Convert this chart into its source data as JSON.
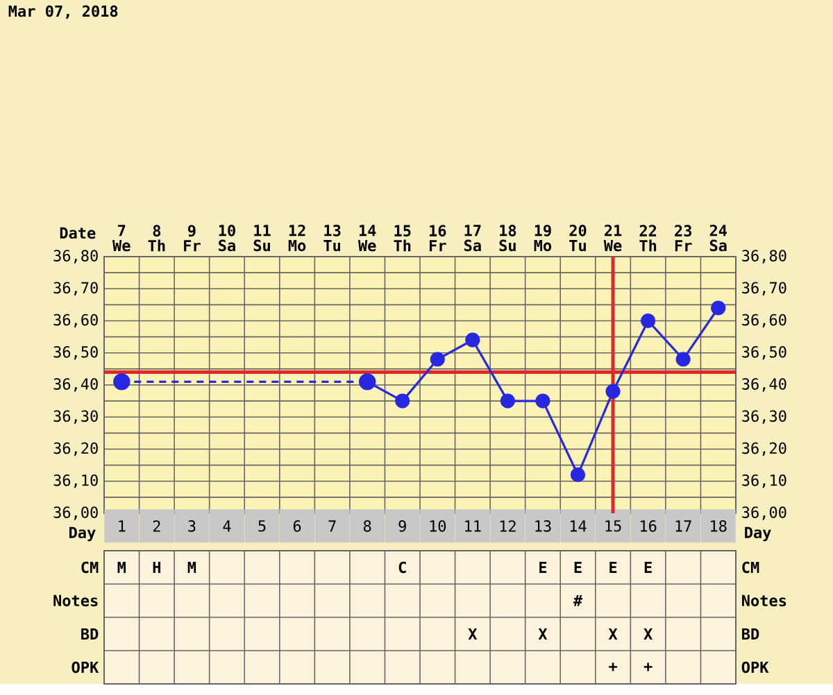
{
  "chart_data": [
    {
      "type": "line",
      "title": "Mar 07, 2018",
      "xlabel": "Day",
      "x2label": "Date",
      "categories": [
        "1",
        "2",
        "3",
        "4",
        "5",
        "6",
        "7",
        "8",
        "9",
        "10",
        "11",
        "12",
        "13",
        "14",
        "15",
        "16",
        "17",
        "18"
      ],
      "series": [
        {
          "color": "#2828e0",
          "line_style": "solid",
          "values": [
            null,
            null,
            null,
            null,
            null,
            null,
            null,
            36.41,
            36.35,
            36.48,
            36.54,
            36.35,
            36.35,
            36.12,
            36.38,
            36.6,
            36.48,
            36.64
          ]
        },
        {
          "color": "#2828e0",
          "line_style": "dashed",
          "values": [
            36.41,
            null,
            null,
            null,
            null,
            null,
            null,
            36.41,
            null,
            null,
            null,
            null,
            null,
            null,
            null,
            null,
            null,
            null
          ]
        }
      ],
      "marker": "circle",
      "grid": true,
      "ylim": [
        36.0,
        36.8
      ],
      "yticks": [
        {
          "value": 36.0,
          "label": "36,00"
        },
        {
          "value": 36.1,
          "label": "36,10"
        },
        {
          "value": 36.2,
          "label": "36,20"
        },
        {
          "value": 36.3,
          "label": "36,30"
        },
        {
          "value": 36.4,
          "label": "36,40"
        },
        {
          "value": 36.5,
          "label": "36,50"
        },
        {
          "value": 36.6,
          "label": "36,60"
        },
        {
          "value": 36.7,
          "label": "36,70"
        },
        {
          "value": 36.8,
          "label": "36,80"
        }
      ],
      "y2lim": [
        36.0,
        36.8
      ],
      "y2ticks": [
        {
          "value": 36.0,
          "label": "36,00"
        },
        {
          "value": 36.1,
          "label": "36,10"
        },
        {
          "value": 36.2,
          "label": "36,20"
        },
        {
          "value": 36.3,
          "label": "36,30"
        },
        {
          "value": 36.4,
          "label": "36,40"
        },
        {
          "value": 36.5,
          "label": "36,50"
        },
        {
          "value": 36.6,
          "label": "36,60"
        },
        {
          "value": 36.7,
          "label": "36,70"
        },
        {
          "value": 36.8,
          "label": "36,80"
        }
      ],
      "x2lim": [
        6.5,
        24.5
      ],
      "x2ticks": [
        {
          "value": 7,
          "label": "7 We"
        },
        {
          "value": 8,
          "label": "8 Th"
        },
        {
          "value": 9,
          "label": "9 Fr"
        },
        {
          "value": 10,
          "label": "10 Sa"
        },
        {
          "value": 11,
          "label": "11 Su"
        },
        {
          "value": 12,
          "label": "12 Mo"
        },
        {
          "value": 13,
          "label": "13 Tu"
        },
        {
          "value": 14,
          "label": "14 We"
        },
        {
          "value": 15,
          "label": "15 Th"
        },
        {
          "value": 16,
          "label": "16 Fr"
        },
        {
          "value": 17,
          "label": "17 Sa"
        },
        {
          "value": 18,
          "label": "18 Su"
        },
        {
          "value": 19,
          "label": "19 Mo"
        },
        {
          "value": 20,
          "label": "20 Tu"
        },
        {
          "value": 21,
          "label": "21 We"
        },
        {
          "value": 22,
          "label": "22 Th"
        },
        {
          "value": 23,
          "label": "23 Fr"
        },
        {
          "value": 24,
          "label": "24 Sa"
        }
      ],
      "ref_lines": [
        {
          "axis": "y",
          "value": 36.44,
          "color": "#e02828"
        },
        {
          "axis": "x",
          "value": "15",
          "color": "#e02828"
        }
      ]
    },
    {
      "type": "heatmap",
      "categories": [
        null,
        null,
        null,
        null,
        null,
        null,
        null,
        null,
        null,
        null,
        null,
        null,
        null,
        null,
        null,
        null,
        null,
        null
      ],
      "y_categories": [
        "CM",
        "Notes",
        "BD",
        "OPK"
      ],
      "y2_categories": [
        "CM",
        "Notes",
        "BD",
        "OPK"
      ],
      "cells": [
        [
          null,
          null,
          null,
          null,
          null,
          null,
          null,
          null,
          null,
          null,
          null,
          null,
          null,
          null,
          null,
          null,
          null,
          null
        ],
        [
          null,
          null,
          null,
          null,
          null,
          null,
          null,
          null,
          null,
          null,
          null,
          null,
          null,
          null,
          null,
          null,
          null,
          null
        ],
        [
          null,
          null,
          null,
          null,
          null,
          null,
          null,
          null,
          null,
          null,
          null,
          null,
          null,
          null,
          null,
          null,
          null,
          null
        ],
        [
          null,
          null,
          null,
          null,
          null,
          null,
          null,
          null,
          null,
          null,
          null,
          null,
          null,
          null,
          null,
          null,
          null,
          null
        ]
      ],
      "cell_labels": [
        [
          "M",
          "H",
          "M",
          null,
          null,
          null,
          null,
          null,
          "C",
          null,
          null,
          null,
          "E",
          "E",
          "E",
          "E",
          null,
          null
        ],
        [
          null,
          null,
          null,
          null,
          null,
          null,
          null,
          null,
          null,
          null,
          null,
          null,
          null,
          "#",
          null,
          null,
          null,
          null
        ],
        [
          null,
          null,
          null,
          null,
          null,
          null,
          null,
          null,
          null,
          null,
          "X",
          null,
          "X",
          null,
          "X",
          "X",
          null,
          null
        ],
        [
          null,
          null,
          null,
          null,
          null,
          null,
          null,
          null,
          null,
          null,
          null,
          null,
          null,
          null,
          "+",
          "+",
          null,
          null
        ]
      ]
    }
  ]
}
